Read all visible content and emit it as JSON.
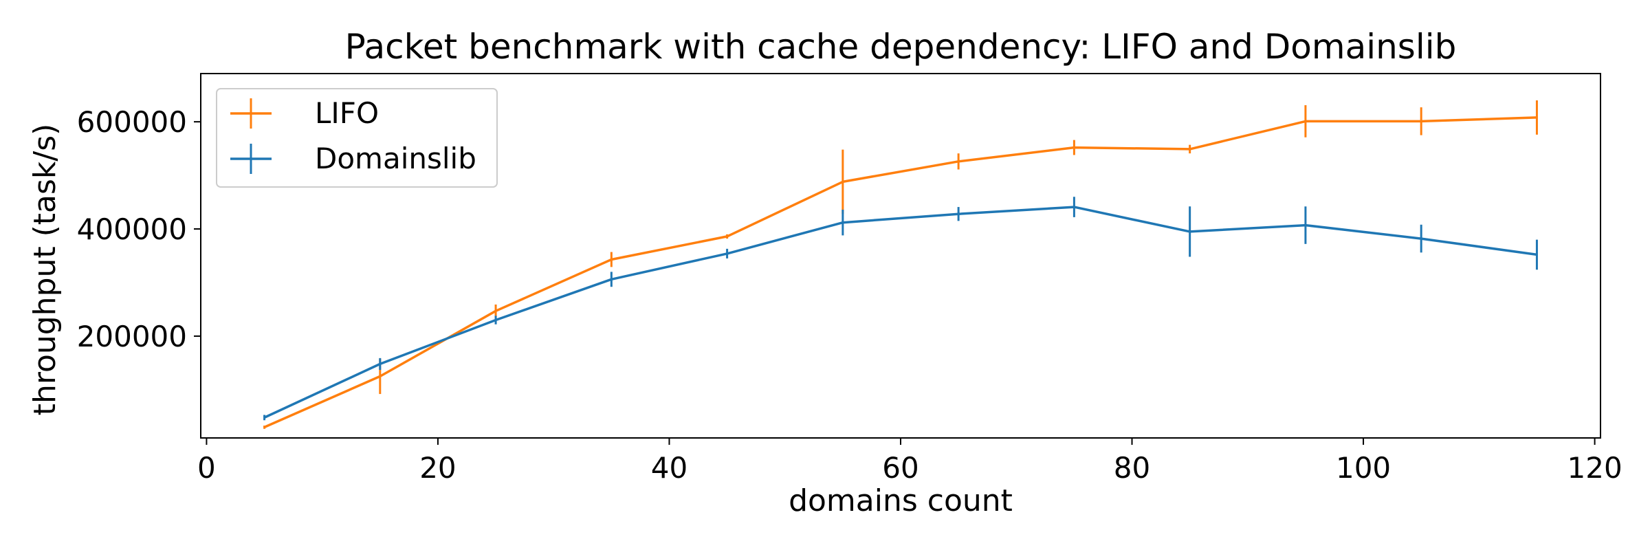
{
  "chart_data": {
    "type": "line",
    "title": "Packet benchmark with cache dependency: LIFO and Domainslib",
    "xlabel": "domains count",
    "ylabel": "throughput (task/s)",
    "xlim": [
      -0.5,
      120.5
    ],
    "ylim": [
      10000,
      690000
    ],
    "xticks": [
      0,
      20,
      40,
      60,
      80,
      100,
      120
    ],
    "yticks": [
      200000,
      400000,
      600000
    ],
    "grid": false,
    "legend_position": "top-left",
    "series": [
      {
        "name": "LIFO",
        "color": "#ff7f0e",
        "x": [
          5,
          15,
          25,
          35,
          45,
          55,
          65,
          75,
          85,
          95,
          105,
          115
        ],
        "y": [
          30000,
          125000,
          247000,
          343000,
          386000,
          488000,
          526000,
          552000,
          549000,
          601000,
          601000,
          608000
        ],
        "err": [
          3000,
          33000,
          12000,
          14000,
          4000,
          60000,
          15000,
          14000,
          8000,
          30000,
          26000,
          32000
        ]
      },
      {
        "name": "Domainslib",
        "color": "#1f77b4",
        "x": [
          5,
          15,
          25,
          35,
          45,
          55,
          65,
          75,
          85,
          95,
          105,
          115
        ],
        "y": [
          48000,
          148000,
          230000,
          306000,
          354000,
          412000,
          428000,
          441000,
          395000,
          407000,
          382000,
          352000
        ],
        "err": [
          5000,
          11000,
          8000,
          14000,
          9000,
          24000,
          13000,
          19000,
          47000,
          35000,
          26000,
          28000
        ]
      }
    ]
  }
}
